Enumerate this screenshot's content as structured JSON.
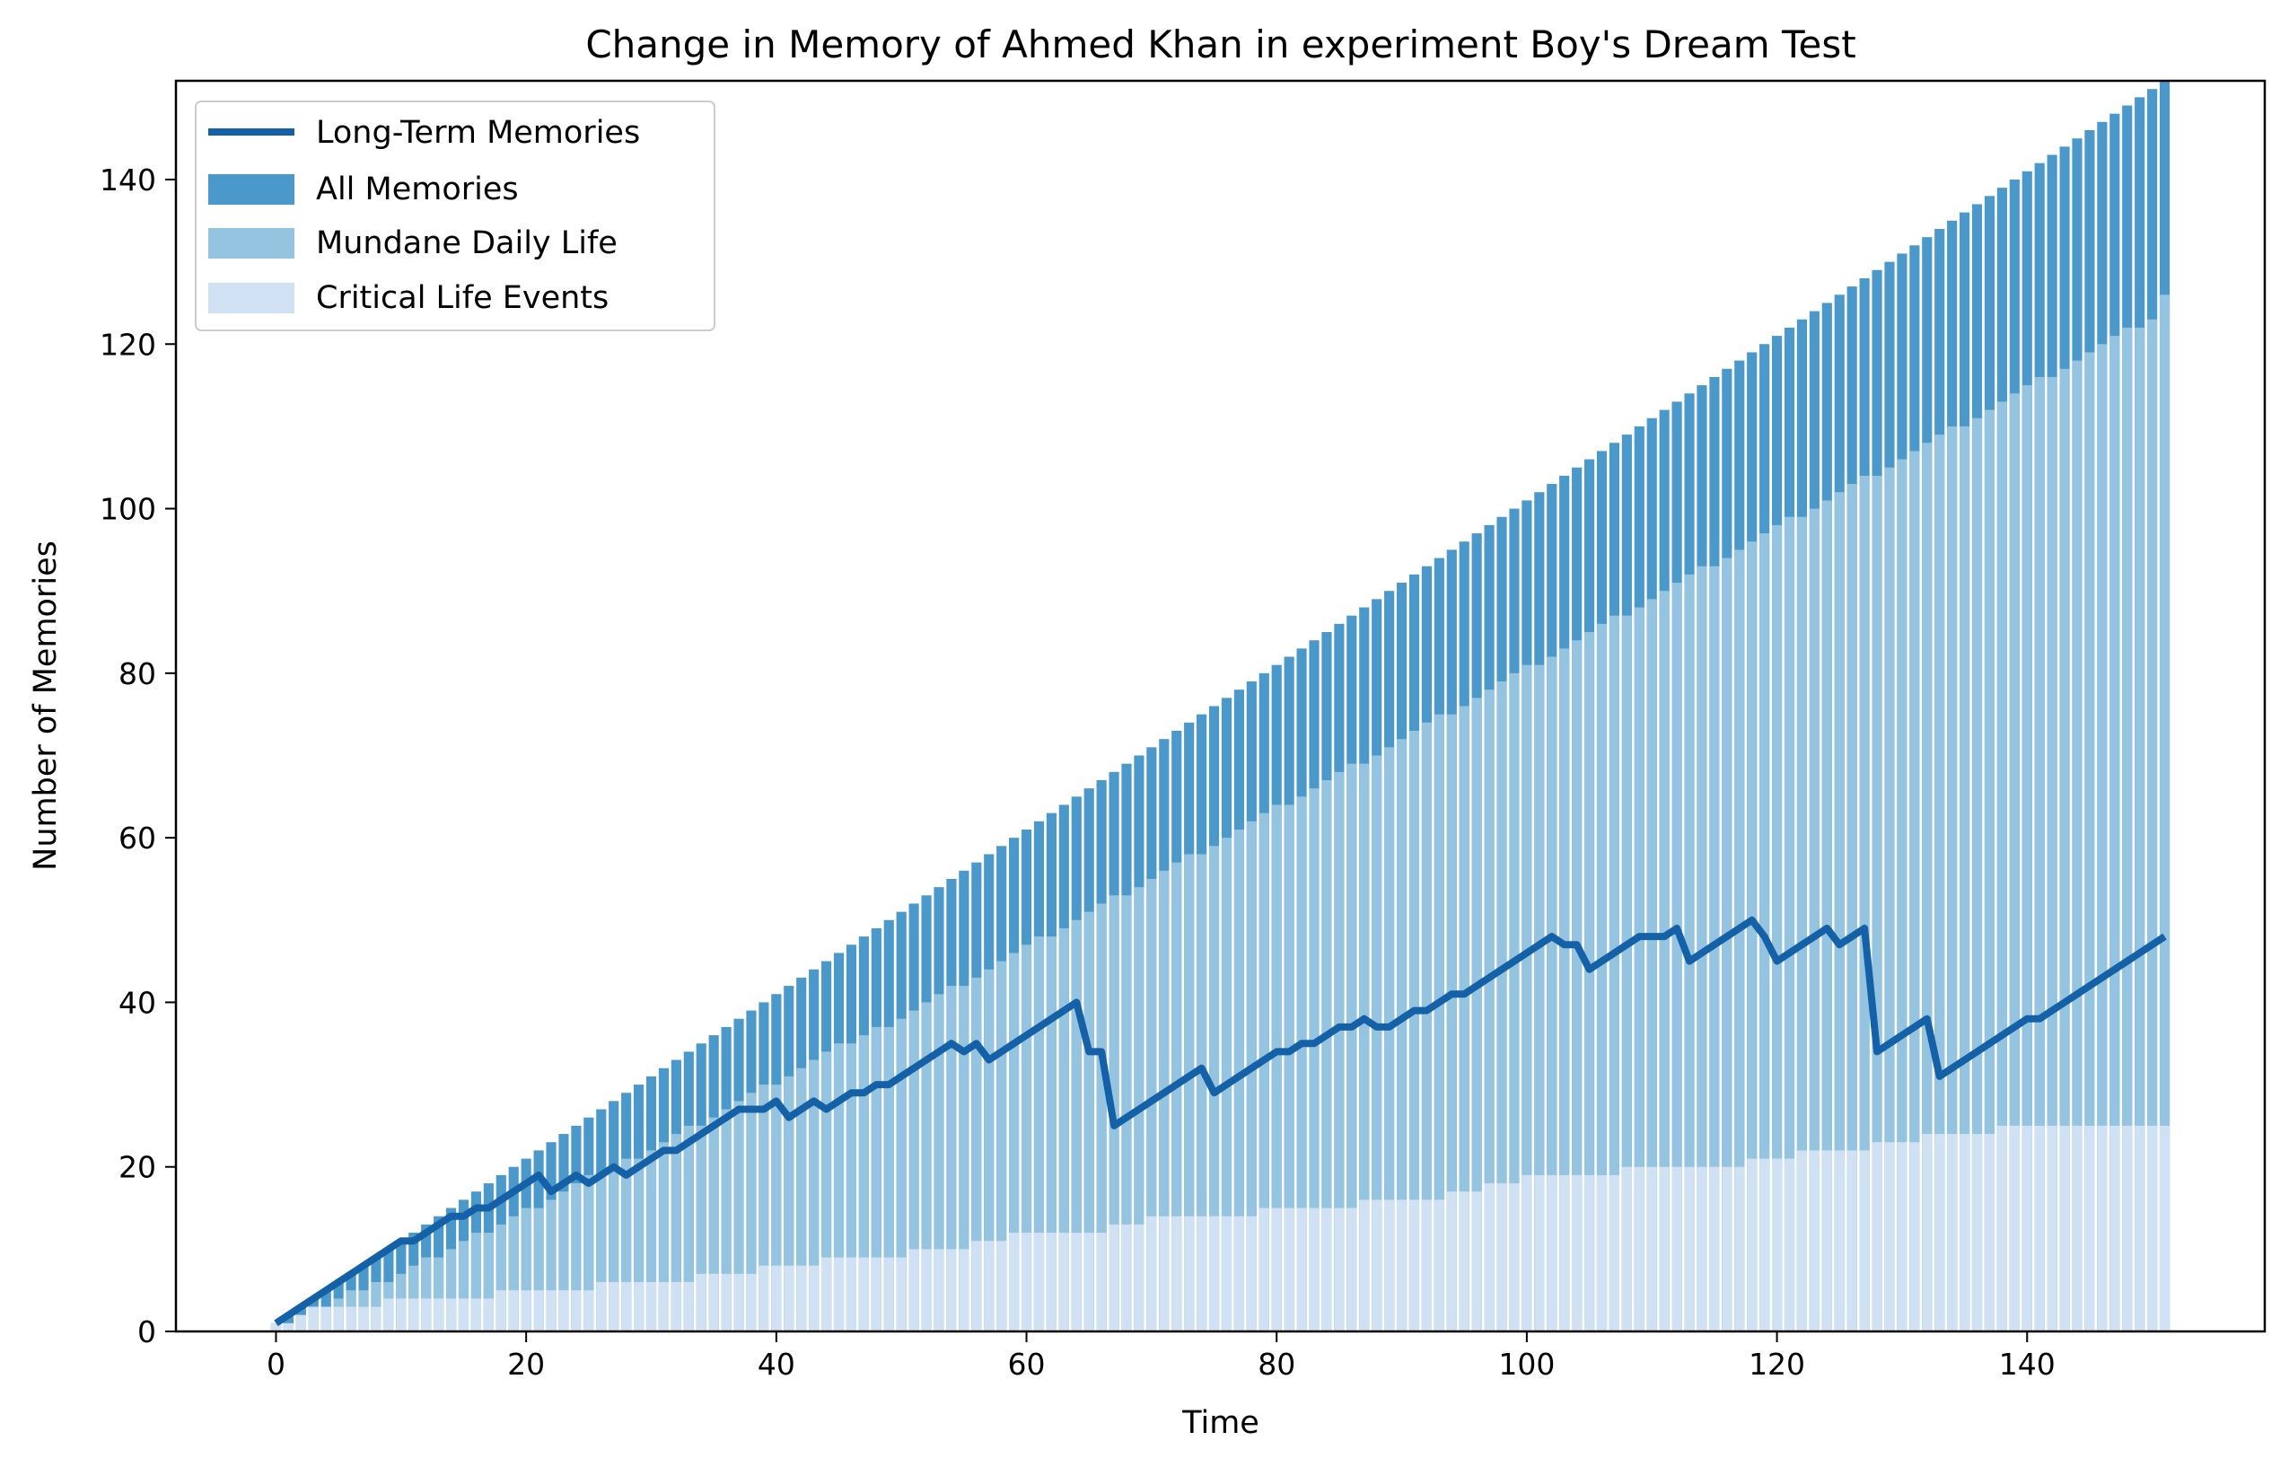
{
  "chart_data": {
    "type": "bar",
    "title": "Change in Memory of Ahmed Khan in experiment Boy's Dream Test",
    "xlabel": "Time",
    "ylabel": "Number of Memories",
    "xlim": [
      -8,
      159
    ],
    "ylim": [
      0,
      152
    ],
    "xticks": [
      0,
      20,
      40,
      60,
      80,
      100,
      120,
      140
    ],
    "yticks": [
      0,
      20,
      40,
      60,
      80,
      100,
      120,
      140
    ],
    "grid": false,
    "legend_position": "upper-left",
    "x": [
      0,
      1,
      2,
      3,
      4,
      5,
      6,
      7,
      8,
      9,
      10,
      11,
      12,
      13,
      14,
      15,
      16,
      17,
      18,
      19,
      20,
      21,
      22,
      23,
      24,
      25,
      26,
      27,
      28,
      29,
      30,
      31,
      32,
      33,
      34,
      35,
      36,
      37,
      38,
      39,
      40,
      41,
      42,
      43,
      44,
      45,
      46,
      47,
      48,
      49,
      50,
      51,
      52,
      53,
      54,
      55,
      56,
      57,
      58,
      59,
      60,
      61,
      62,
      63,
      64,
      65,
      66,
      67,
      68,
      69,
      70,
      71,
      72,
      73,
      74,
      75,
      76,
      77,
      78,
      79,
      80,
      81,
      82,
      83,
      84,
      85,
      86,
      87,
      88,
      89,
      90,
      91,
      92,
      93,
      94,
      95,
      96,
      97,
      98,
      99,
      100,
      101,
      102,
      103,
      104,
      105,
      106,
      107,
      108,
      109,
      110,
      111,
      112,
      113,
      114,
      115,
      116,
      117,
      118,
      119,
      120,
      121,
      122,
      123,
      124,
      125,
      126,
      127,
      128,
      129,
      130,
      131,
      132,
      133,
      134,
      135,
      136,
      137,
      138,
      139,
      140,
      141,
      142,
      143,
      144,
      145,
      146,
      147,
      148,
      149,
      150,
      151
    ],
    "series": [
      {
        "name": "All Memories",
        "kind": "bar",
        "color": "#4b98ca",
        "values": [
          1,
          2,
          3,
          4,
          5,
          6,
          7,
          8,
          9,
          10,
          11,
          12,
          13,
          14,
          15,
          16,
          17,
          18,
          19,
          20,
          21,
          22,
          23,
          24,
          25,
          26,
          27,
          28,
          29,
          30,
          31,
          32,
          33,
          34,
          35,
          36,
          37,
          38,
          39,
          40,
          41,
          42,
          43,
          44,
          45,
          46,
          47,
          48,
          49,
          50,
          51,
          52,
          53,
          54,
          55,
          56,
          57,
          58,
          59,
          60,
          61,
          62,
          63,
          64,
          65,
          66,
          67,
          68,
          69,
          70,
          71,
          72,
          73,
          74,
          75,
          76,
          77,
          78,
          79,
          80,
          81,
          82,
          83,
          84,
          85,
          86,
          87,
          88,
          89,
          90,
          91,
          92,
          93,
          94,
          95,
          96,
          97,
          98,
          99,
          100,
          101,
          102,
          103,
          104,
          105,
          106,
          107,
          108,
          109,
          110,
          111,
          112,
          113,
          114,
          115,
          116,
          117,
          118,
          119,
          120,
          121,
          122,
          123,
          124,
          125,
          126,
          127,
          128,
          129,
          130,
          131,
          132,
          133,
          134,
          135,
          136,
          137,
          138,
          139,
          140,
          141,
          142,
          143,
          144,
          145,
          146,
          147,
          148,
          149,
          150,
          151,
          152
        ]
      },
      {
        "name": "Mundane Daily Life",
        "kind": "bar",
        "color": "#94c4df",
        "values": [
          1,
          1,
          2,
          3,
          3,
          4,
          5,
          5,
          6,
          6,
          7,
          8,
          9,
          9,
          10,
          11,
          12,
          12,
          13,
          14,
          15,
          15,
          16,
          17,
          18,
          19,
          19,
          20,
          21,
          21,
          22,
          23,
          24,
          25,
          25,
          26,
          27,
          28,
          29,
          30,
          30,
          31,
          32,
          33,
          34,
          35,
          35,
          36,
          37,
          37,
          38,
          39,
          40,
          41,
          42,
          42,
          43,
          44,
          45,
          46,
          47,
          48,
          48,
          49,
          50,
          51,
          52,
          53,
          53,
          54,
          55,
          56,
          57,
          58,
          58,
          59,
          60,
          61,
          62,
          63,
          64,
          64,
          65,
          66,
          67,
          68,
          69,
          69,
          70,
          71,
          72,
          73,
          74,
          75,
          75,
          76,
          77,
          78,
          79,
          80,
          81,
          81,
          82,
          83,
          84,
          85,
          86,
          87,
          87,
          88,
          89,
          90,
          91,
          92,
          93,
          93,
          94,
          95,
          96,
          97,
          98,
          99,
          99,
          100,
          101,
          102,
          103,
          104,
          104,
          105,
          106,
          107,
          108,
          109,
          110,
          110,
          111,
          112,
          113,
          114,
          115,
          116,
          116,
          117,
          118,
          119,
          120,
          121,
          122,
          122,
          123,
          126
        ]
      },
      {
        "name": "Critical Life Events",
        "kind": "bar",
        "color": "#cfe1f2",
        "values": [
          1,
          1,
          2,
          3,
          3,
          3,
          3,
          3,
          3,
          4,
          4,
          4,
          4,
          4,
          4,
          4,
          4,
          4,
          5,
          5,
          5,
          5,
          5,
          5,
          5,
          5,
          6,
          6,
          6,
          6,
          6,
          6,
          6,
          6,
          7,
          7,
          7,
          7,
          7,
          8,
          8,
          8,
          8,
          8,
          9,
          9,
          9,
          9,
          9,
          9,
          9,
          10,
          10,
          10,
          10,
          10,
          11,
          11,
          11,
          12,
          12,
          12,
          12,
          12,
          12,
          12,
          12,
          13,
          13,
          13,
          14,
          14,
          14,
          14,
          14,
          14,
          14,
          14,
          14,
          15,
          15,
          15,
          15,
          15,
          15,
          15,
          15,
          16,
          16,
          16,
          16,
          16,
          16,
          16,
          17,
          17,
          17,
          18,
          18,
          18,
          19,
          19,
          19,
          19,
          19,
          19,
          19,
          19,
          20,
          20,
          20,
          20,
          20,
          20,
          20,
          20,
          20,
          20,
          21,
          21,
          21,
          21,
          22,
          22,
          22,
          22,
          22,
          22,
          23,
          23,
          23,
          23,
          24,
          24,
          24,
          24,
          24,
          24,
          25,
          25,
          25,
          25,
          25,
          25,
          25,
          25,
          25,
          25,
          25,
          25,
          25,
          25
        ]
      },
      {
        "name": "Long-Term Memories",
        "kind": "line",
        "color": "#1561a8",
        "values": [
          1,
          2,
          3,
          4,
          5,
          6,
          7,
          8,
          9,
          10,
          11,
          11,
          12,
          13,
          14,
          14,
          15,
          15,
          16,
          17,
          18,
          19,
          17,
          18,
          19,
          18,
          19,
          20,
          19,
          20,
          21,
          22,
          22,
          23,
          24,
          25,
          26,
          27,
          27,
          27,
          28,
          26,
          27,
          28,
          27,
          28,
          29,
          29,
          30,
          30,
          31,
          32,
          33,
          34,
          35,
          34,
          35,
          33,
          34,
          35,
          36,
          37,
          38,
          39,
          40,
          34,
          34,
          25,
          26,
          27,
          28,
          29,
          30,
          31,
          32,
          29,
          30,
          31,
          32,
          33,
          34,
          34,
          35,
          35,
          36,
          37,
          37,
          38,
          37,
          37,
          38,
          39,
          39,
          40,
          41,
          41,
          42,
          43,
          44,
          45,
          46,
          47,
          48,
          47,
          47,
          44,
          45,
          46,
          47,
          48,
          48,
          48,
          49,
          45,
          46,
          47,
          48,
          49,
          50,
          48,
          45,
          46,
          47,
          48,
          49,
          47,
          48,
          49,
          34,
          35,
          36,
          37,
          38,
          31,
          32,
          33,
          34,
          35,
          36,
          37,
          38,
          38,
          39,
          40,
          41,
          42,
          43,
          44,
          45,
          46,
          47,
          48
        ]
      }
    ],
    "legend": [
      "Long-Term Memories",
      "All Memories",
      "Mundane Daily Life",
      "Critical Life Events"
    ]
  }
}
